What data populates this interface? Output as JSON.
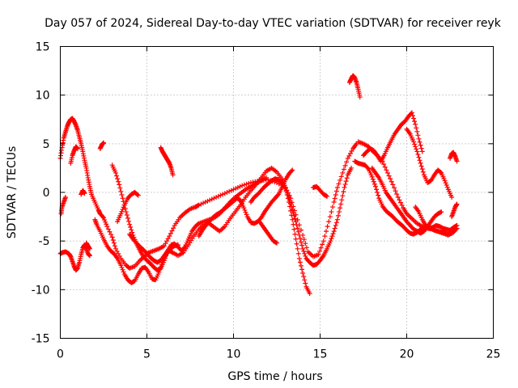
{
  "chart_data": {
    "type": "scatter",
    "title": "Day 057 of 2024, Sidereal Day-to-day VTEC variation (SDTVAR) for receiver reyk",
    "xlabel": "GPS time / hours",
    "ylabel": "SDTVAR / TECUs",
    "xlim": [
      0,
      25
    ],
    "ylim": [
      -15,
      15
    ],
    "xticks": [
      0,
      5,
      10,
      15,
      20,
      25
    ],
    "yticks": [
      -15,
      -10,
      -5,
      0,
      5,
      10,
      15
    ],
    "grid": true,
    "marker": "+",
    "series": [
      {
        "name": "SDTVAR",
        "color": "#ff0000",
        "tracks": [
          {
            "x": [
              0.0,
              0.1,
              0.2,
              0.3,
              0.4,
              0.5,
              0.6,
              0.7,
              0.8,
              0.9,
              1.0,
              1.1,
              1.2,
              1.3,
              1.4,
              1.5,
              1.6,
              1.7,
              1.8,
              2.0,
              2.2,
              2.3,
              2.5,
              2.7,
              3.0,
              3.2,
              3.5,
              3.8,
              4.0,
              4.3,
              4.6,
              4.9,
              5.1,
              5.4,
              5.7,
              6.0,
              6.3,
              6.6,
              6.9,
              7.2,
              7.5,
              7.8,
              8.0,
              8.5,
              9.0,
              9.5,
              10.0,
              10.5,
              11.0,
              11.5,
              12.0,
              12.5,
              13.0,
              13.3,
              13.6,
              14.0,
              14.3,
              14.6,
              14.9,
              15.2,
              15.5,
              15.8,
              16.0,
              16.3,
              16.6,
              16.9,
              17.1
            ],
            "y": [
              3.5,
              4.6,
              5.6,
              6.2,
              6.8,
              7.2,
              7.5,
              7.6,
              7.3,
              6.9,
              6.4,
              5.7,
              5.0,
              4.2,
              3.3,
              2.5,
              1.5,
              0.6,
              -0.2,
              -1.0,
              -1.8,
              -2.2,
              -2.6,
              -3.5,
              -4.6,
              -5.8,
              -6.8,
              -7.5,
              -7.8,
              -7.6,
              -7.0,
              -6.5,
              -6.2,
              -6.0,
              -5.8,
              -5.5,
              -4.5,
              -3.4,
              -2.6,
              -2.1,
              -1.7,
              -1.5,
              -1.3,
              -0.9,
              -0.5,
              -0.1,
              0.3,
              0.7,
              1.0,
              1.2,
              1.3,
              1.0,
              0.5,
              -0.6,
              -2.3,
              -4.4,
              -6.1,
              -6.6,
              -6.4,
              -5.0,
              -3.0,
              -1.0,
              0.5,
              2.0,
              3.5,
              4.5,
              5.0
            ]
          },
          {
            "x": [
              17.2,
              17.5,
              17.8,
              18.0,
              18.3,
              18.6,
              18.9,
              19.2,
              19.5,
              19.8,
              20.0,
              20.3,
              20.6,
              20.9,
              21.2,
              21.5,
              21.8,
              22.1,
              22.4,
              22.7,
              22.9
            ],
            "y": [
              5.2,
              5.0,
              4.7,
              4.3,
              3.8,
              3.2,
              2.0,
              0.8,
              -0.5,
              -1.6,
              -2.2,
              -2.7,
              -3.2,
              -3.5,
              -3.7,
              -3.8,
              -4.0,
              -4.2,
              -4.4,
              -4.1,
              -3.7
            ]
          },
          {
            "x": [
              0.0,
              0.1,
              0.3,
              0.5,
              0.6,
              0.7,
              0.8,
              0.9,
              1.0,
              1.1,
              1.2,
              1.3,
              1.4,
              1.5,
              1.6,
              1.7
            ],
            "y": [
              -6.3,
              -6.2,
              -6.1,
              -6.3,
              -6.6,
              -7.1,
              -7.6,
              -8.0,
              -7.8,
              -7.2,
              -6.4,
              -5.7,
              -5.4,
              -5.8,
              -6.3,
              -6.5
            ]
          },
          {
            "x": [
              0.05,
              0.1,
              0.2,
              0.3
            ],
            "y": [
              -2.2,
              -1.5,
              -1.0,
              -0.5
            ]
          },
          {
            "x": [
              2.0,
              2.1,
              2.3,
              2.5,
              2.7,
              2.9,
              3.1,
              3.3,
              3.5,
              3.7,
              3.9,
              4.1,
              4.3,
              4.5,
              4.7,
              4.9,
              5.1,
              5.3,
              5.5,
              5.7,
              5.9,
              6.1,
              6.3,
              6.5,
              6.8,
              7.1,
              7.4,
              7.7,
              8.0,
              8.3,
              8.6,
              8.9,
              9.2,
              9.5,
              9.8,
              10.1,
              10.4,
              10.7,
              11.0,
              11.3,
              11.6,
              11.9,
              12.2,
              12.5,
              12.8,
              13.0,
              13.2,
              13.4,
              13.6,
              13.8,
              14.0,
              14.2,
              14.4
            ],
            "y": [
              -2.8,
              -3.3,
              -4.0,
              -4.8,
              -5.5,
              -6.0,
              -6.3,
              -6.8,
              -7.5,
              -8.4,
              -9.0,
              -9.3,
              -9.1,
              -8.4,
              -7.8,
              -7.7,
              -8.2,
              -8.9,
              -9.0,
              -8.2,
              -7.2,
              -6.4,
              -6.0,
              -6.2,
              -6.5,
              -6.2,
              -5.4,
              -4.5,
              -3.8,
              -3.3,
              -3.2,
              -3.6,
              -4.0,
              -3.5,
              -2.7,
              -2.0,
              -1.3,
              -0.5,
              0.2,
              0.8,
              1.5,
              2.2,
              2.5,
              2.1,
              1.4,
              0.5,
              -1.0,
              -2.8,
              -4.8,
              -6.8,
              -8.3,
              -9.7,
              -10.4
            ]
          },
          {
            "x": [
              3.0,
              3.2,
              3.4,
              3.6,
              3.8,
              4.0,
              4.2,
              4.4,
              4.6,
              4.8,
              5.0,
              5.2,
              5.4,
              5.6,
              5.8,
              6.0,
              6.2,
              6.4,
              6.6,
              6.8,
              7.0,
              7.2,
              7.4,
              7.6,
              7.8,
              8.0,
              8.3,
              8.6,
              8.9,
              9.2,
              9.5,
              9.8,
              10.1,
              10.4,
              10.7,
              11.0,
              11.3,
              11.6,
              11.9
            ],
            "y": [
              2.8,
              2.0,
              0.8,
              -0.6,
              -2.0,
              -3.3,
              -4.4,
              -5.3,
              -6.0,
              -6.6,
              -7.0,
              -7.3,
              -7.7,
              -8.0,
              -7.8,
              -7.0,
              -6.0,
              -5.4,
              -5.3,
              -5.6,
              -6.0,
              -5.6,
              -4.8,
              -4.0,
              -3.5,
              -3.2,
              -3.0,
              -2.8,
              -2.6,
              -2.2,
              -1.6,
              -1.0,
              -0.5,
              -0.1,
              0.3,
              0.6,
              0.9,
              1.2,
              1.5
            ]
          },
          {
            "x": [
              4.0,
              4.2,
              4.4,
              4.6,
              4.8,
              5.0,
              5.2,
              5.4,
              5.6,
              5.8,
              6.0,
              6.2,
              6.4,
              6.6,
              6.8
            ],
            "y": [
              -4.3,
              -4.8,
              -5.2,
              -5.6,
              -5.9,
              -6.3,
              -6.7,
              -7.0,
              -7.2,
              -7.0,
              -6.5,
              -6.0,
              -5.7,
              -5.5,
              -5.4
            ]
          },
          {
            "x": [
              11.0,
              11.2,
              11.4,
              11.6,
              11.8,
              12.0,
              12.2,
              12.4,
              12.6,
              12.8,
              13.0,
              13.2,
              13.4,
              13.6,
              13.8,
              14.0,
              14.2,
              14.4,
              14.6,
              14.8,
              15.0,
              15.2,
              15.4,
              15.6,
              15.8,
              16.0,
              16.2,
              16.4,
              16.6,
              16.8
            ],
            "y": [
              -1.0,
              -0.5,
              -0.2,
              0.2,
              0.6,
              0.9,
              1.2,
              1.4,
              1.3,
              1.0,
              0.4,
              -0.5,
              -1.8,
              -3.0,
              -4.4,
              -5.8,
              -6.8,
              -7.2,
              -7.5,
              -7.4,
              -7.0,
              -6.5,
              -5.8,
              -5.0,
              -4.0,
              -2.8,
              -1.2,
              0.5,
              1.8,
              2.5
            ]
          },
          {
            "x": [
              8.0,
              8.2,
              8.4,
              8.6,
              8.8,
              9.0,
              9.2,
              9.4,
              9.6,
              9.8,
              10.0,
              10.2,
              10.4,
              10.6,
              10.8,
              11.0,
              11.2,
              11.4,
              11.6,
              11.8,
              12.0,
              12.2,
              12.4,
              12.6,
              12.8,
              13.0,
              13.2,
              13.4
            ],
            "y": [
              -4.5,
              -3.9,
              -3.4,
              -3.0,
              -2.6,
              -2.3,
              -2.1,
              -1.8,
              -1.5,
              -1.2,
              -0.9,
              -0.6,
              -0.8,
              -1.6,
              -2.5,
              -3.1,
              -3.2,
              -3.0,
              -2.6,
              -2.0,
              -1.5,
              -1.0,
              -0.6,
              -0.2,
              0.5,
              1.3,
              1.9,
              2.3
            ]
          },
          {
            "x": [
              11.5,
              11.7,
              11.9,
              12.1,
              12.3,
              12.5
            ],
            "y": [
              -3.0,
              -3.5,
              -4.0,
              -4.5,
              -5.0,
              -5.2
            ]
          },
          {
            "x": [
              16.7,
              16.8,
              16.9,
              17.0,
              17.1,
              17.2,
              17.3
            ],
            "y": [
              11.3,
              11.7,
              12.0,
              11.8,
              11.3,
              10.6,
              9.8
            ]
          },
          {
            "x": [
              17.0,
              17.2,
              17.4,
              17.6,
              17.8,
              18.0,
              18.2,
              18.4,
              18.6,
              18.8,
              19.0,
              19.2,
              19.4,
              19.6,
              19.8,
              20.0,
              20.2,
              20.4,
              20.6,
              20.8,
              21.0,
              21.2,
              21.4,
              21.6,
              21.8,
              22.0,
              22.2,
              22.4,
              22.6,
              22.8
            ],
            "y": [
              3.2,
              3.0,
              2.9,
              2.8,
              2.4,
              1.6,
              0.6,
              -0.6,
              -1.4,
              -1.9,
              -2.2,
              -2.5,
              -2.9,
              -3.2,
              -3.5,
              -3.9,
              -4.2,
              -4.3,
              -4.1,
              -3.8,
              -3.6,
              -3.6,
              -3.7,
              -3.9,
              -4.0,
              -4.1,
              -4.2,
              -4.3,
              -4.2,
              -3.8
            ]
          },
          {
            "x": [
              17.5,
              17.7,
              17.9,
              18.1,
              18.3,
              18.5,
              18.7,
              18.9,
              19.1,
              19.3,
              19.5,
              19.7,
              19.9,
              20.1,
              20.3,
              20.5,
              20.7,
              20.9
            ],
            "y": [
              3.8,
              4.2,
              4.5,
              4.3,
              3.8,
              3.2,
              3.8,
              4.6,
              5.3,
              6.0,
              6.5,
              7.0,
              7.3,
              7.8,
              8.2,
              7.0,
              5.5,
              4.2
            ]
          },
          {
            "x": [
              18.0,
              18.2,
              18.4,
              18.6,
              18.8,
              19.0,
              19.2,
              19.4,
              19.6,
              19.8,
              20.0,
              20.2,
              20.4,
              20.6,
              20.8,
              21.0,
              21.2,
              21.4,
              21.6,
              21.8,
              22.0
            ],
            "y": [
              2.5,
              2.0,
              1.5,
              0.8,
              0.0,
              -0.5,
              -1.0,
              -1.5,
              -2.0,
              -2.5,
              -3.0,
              -3.4,
              -3.8,
              -4.0,
              -4.2,
              -4.0,
              -3.5,
              -3.0,
              -2.5,
              -2.2,
              -2.0
            ]
          },
          {
            "x": [
              20.0,
              20.2,
              20.4,
              20.6,
              20.8,
              21.0,
              21.2,
              21.4,
              21.6,
              21.8,
              22.0,
              22.2,
              22.4,
              22.6
            ],
            "y": [
              6.5,
              6.0,
              5.2,
              4.2,
              3.0,
              1.8,
              1.0,
              1.2,
              1.8,
              2.3,
              2.0,
              1.2,
              0.3,
              -0.5
            ]
          },
          {
            "x": [
              20.5,
              20.7,
              20.9,
              21.1,
              21.3,
              21.5,
              21.7,
              21.9,
              22.1,
              22.3,
              22.5,
              22.7,
              22.9
            ],
            "y": [
              -1.5,
              -2.0,
              -2.8,
              -3.4,
              -3.7,
              -3.6,
              -3.4,
              -3.5,
              -3.7,
              -3.8,
              -3.9,
              -3.6,
              -3.4
            ]
          },
          {
            "x": [
              22.5,
              22.6,
              22.7,
              22.8,
              22.9
            ],
            "y": [
              3.5,
              4.0,
              4.1,
              3.7,
              3.2
            ]
          },
          {
            "x": [
              22.6,
              22.7,
              22.8,
              22.9
            ],
            "y": [
              -2.5,
              -2.0,
              -1.5,
              -1.2
            ]
          },
          {
            "x": [
              14.6,
              14.8,
              15.0,
              15.2,
              15.4
            ],
            "y": [
              0.5,
              0.6,
              0.2,
              -0.2,
              -0.4
            ]
          },
          {
            "x": [
              0.6,
              0.7,
              0.8,
              0.9,
              1.0
            ],
            "y": [
              3.0,
              3.8,
              4.3,
              4.7,
              4.5
            ]
          },
          {
            "x": [
              1.5,
              1.6,
              1.7
            ],
            "y": [
              -5.2,
              -5.5,
              -5.8
            ]
          },
          {
            "x": [
              2.3,
              2.4,
              2.5
            ],
            "y": [
              4.5,
              4.9,
              5.1
            ]
          },
          {
            "x": [
              3.3,
              3.5,
              3.7,
              3.9,
              4.1,
              4.3,
              4.5
            ],
            "y": [
              -3.0,
              -2.2,
              -1.3,
              -0.6,
              -0.2,
              0.0,
              -0.3
            ]
          },
          {
            "x": [
              5.8,
              5.9,
              6.0,
              6.1,
              6.2,
              6.3,
              6.4,
              6.5
            ],
            "y": [
              4.6,
              4.2,
              3.9,
              3.6,
              3.3,
              3.0,
              2.5,
              1.8
            ]
          },
          {
            "x": [
              1.2,
              1.3,
              1.4
            ],
            "y": [
              -0.2,
              0.2,
              -0.1
            ]
          }
        ]
      }
    ]
  }
}
